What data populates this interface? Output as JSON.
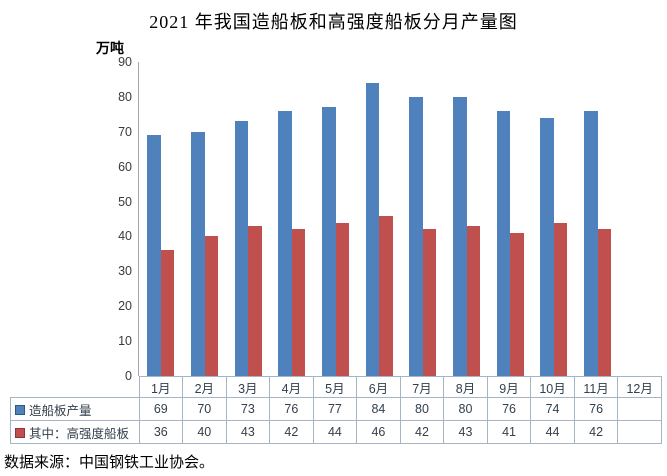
{
  "source_note": "数据来源：中国钢铁工业协会。",
  "chart_data": {
    "type": "bar",
    "title": "2021 年我国造船板和高强度船板分月产量图",
    "ylabel": "万吨",
    "xlabel": "",
    "ylim": [
      0,
      90
    ],
    "yticks": [
      0,
      10,
      20,
      30,
      40,
      50,
      60,
      70,
      80,
      90
    ],
    "grid": false,
    "legend_position": "data-table-left",
    "categories": [
      "1月",
      "2月",
      "3月",
      "4月",
      "5月",
      "6月",
      "7月",
      "8月",
      "9月",
      "10月",
      "11月",
      "12月"
    ],
    "series": [
      {
        "name": "造船板产量",
        "color": "#4F81BD",
        "key_border_color": "#2E5782",
        "values": [
          69,
          70,
          73,
          76,
          77,
          84,
          80,
          80,
          76,
          74,
          76,
          null
        ]
      },
      {
        "name": "其中：高强度船板",
        "color": "#C0504D",
        "key_border_color": "#8C3836",
        "values": [
          36,
          40,
          43,
          42,
          44,
          46,
          42,
          43,
          41,
          44,
          42,
          null
        ]
      }
    ],
    "colors": {
      "axis_line": "#A6A6A6",
      "table_border": "#A3B5C7",
      "table_text": "#33404D"
    }
  }
}
